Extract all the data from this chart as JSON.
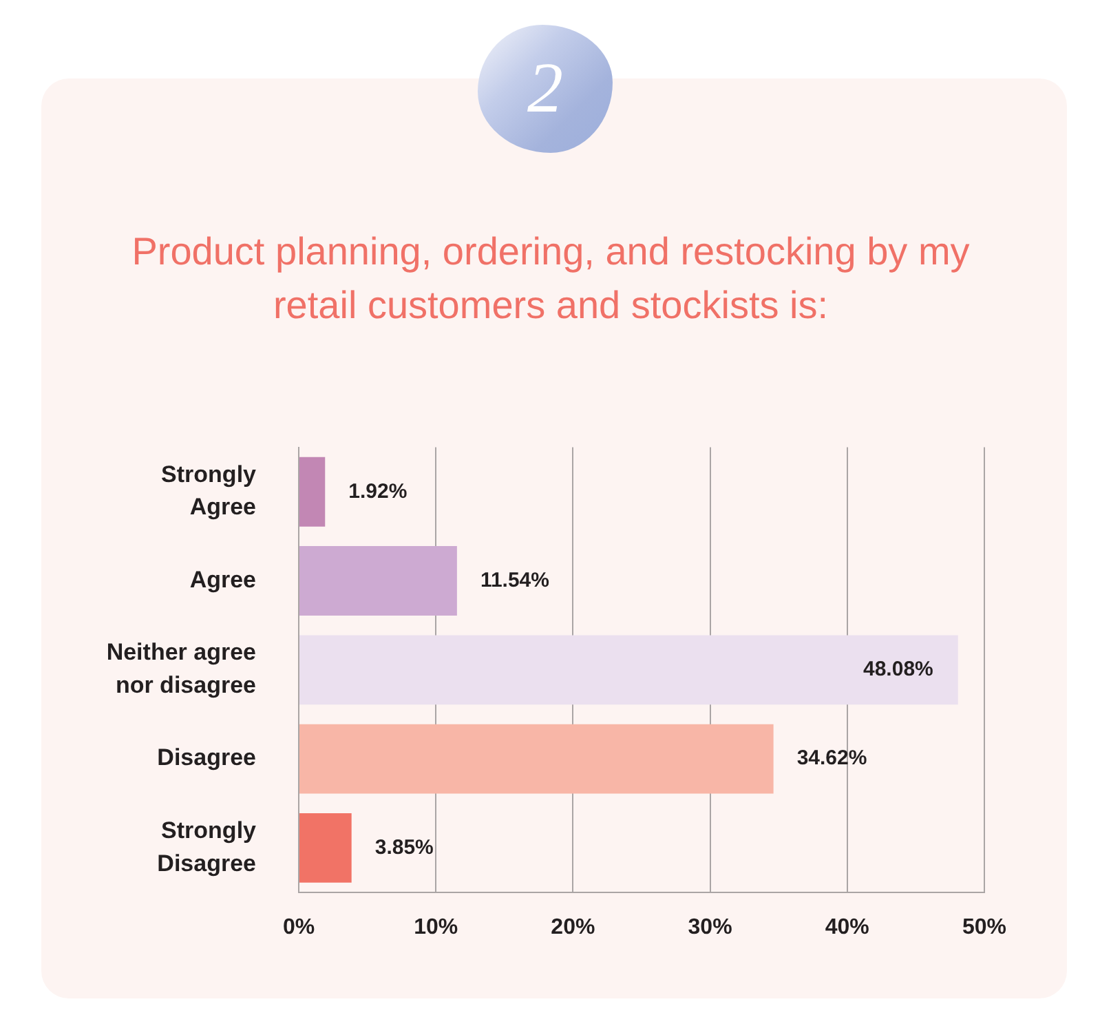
{
  "chart_data": {
    "type": "bar",
    "orientation": "horizontal",
    "title": "Product planning, ordering, and restocking by my retail customers and stockists is:",
    "annotations": [
      "2"
    ],
    "categories": [
      "Strongly Agree",
      "Agree",
      "Neither agree nor disagree",
      "Disagree",
      "Strongly Disagree"
    ],
    "values": [
      1.92,
      11.54,
      48.08,
      34.62,
      3.85
    ],
    "value_labels": [
      "1.92%",
      "11.54%",
      "48.08%",
      "34.62%",
      "3.85%"
    ],
    "colors": [
      "#c287b4",
      "#cdaad2",
      "#ebe0ef",
      "#f8b6a7",
      "#f17366"
    ],
    "xlim": [
      0,
      50
    ],
    "xticks": [
      {
        "value": 0,
        "label": "0%"
      },
      {
        "value": 10,
        "label": "10%"
      },
      {
        "value": 20,
        "label": "20%"
      },
      {
        "value": 30,
        "label": "30%"
      },
      {
        "value": 40,
        "label": "40%"
      },
      {
        "value": 50,
        "label": "50%"
      }
    ],
    "grid": "x"
  }
}
